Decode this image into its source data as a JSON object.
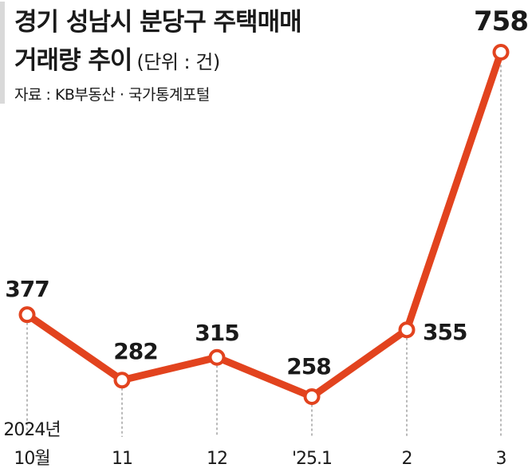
{
  "chart_data": {
    "type": "line",
    "title": "경기 성남시 분당구 주택매매",
    "title_line2": "거래량 추이",
    "unit": "(단위 : 건)",
    "source": "자료 : KB부동산 · 국가통계포털",
    "categories": [
      "10",
      "11",
      "12",
      "1",
      "2",
      "3"
    ],
    "tick_labels": [
      [
        "2024년",
        "10월"
      ],
      [
        "11"
      ],
      [
        "12"
      ],
      [
        "'25.1"
      ],
      [
        "2"
      ],
      [
        "3"
      ]
    ],
    "values": [
      377,
      282,
      315,
      258,
      355,
      758
    ],
    "data_labels": [
      "377",
      "282",
      "315",
      "258",
      "355",
      "758"
    ],
    "line_color": "#e2431e",
    "grid": false,
    "legend": "none"
  }
}
